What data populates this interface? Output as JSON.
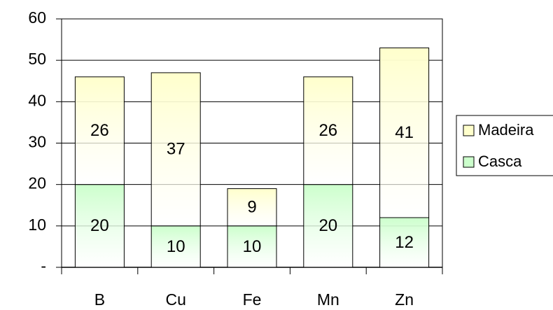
{
  "chart_data": {
    "type": "stacked_bar",
    "categories": [
      "B",
      "Cu",
      "Fe",
      "Mn",
      "Zn"
    ],
    "series": [
      {
        "name": "Casca",
        "color": "#ccffcc",
        "values": [
          20,
          10,
          10,
          20,
          12
        ]
      },
      {
        "name": "Madeira",
        "color": "#ffffcc",
        "values": [
          26,
          37,
          9,
          26,
          41
        ]
      }
    ],
    "ylim": [
      0,
      60
    ],
    "yticks": [
      {
        "value": 0,
        "label": "-"
      },
      10,
      20,
      30,
      40,
      50,
      60
    ],
    "grid": true,
    "legend": "right"
  }
}
